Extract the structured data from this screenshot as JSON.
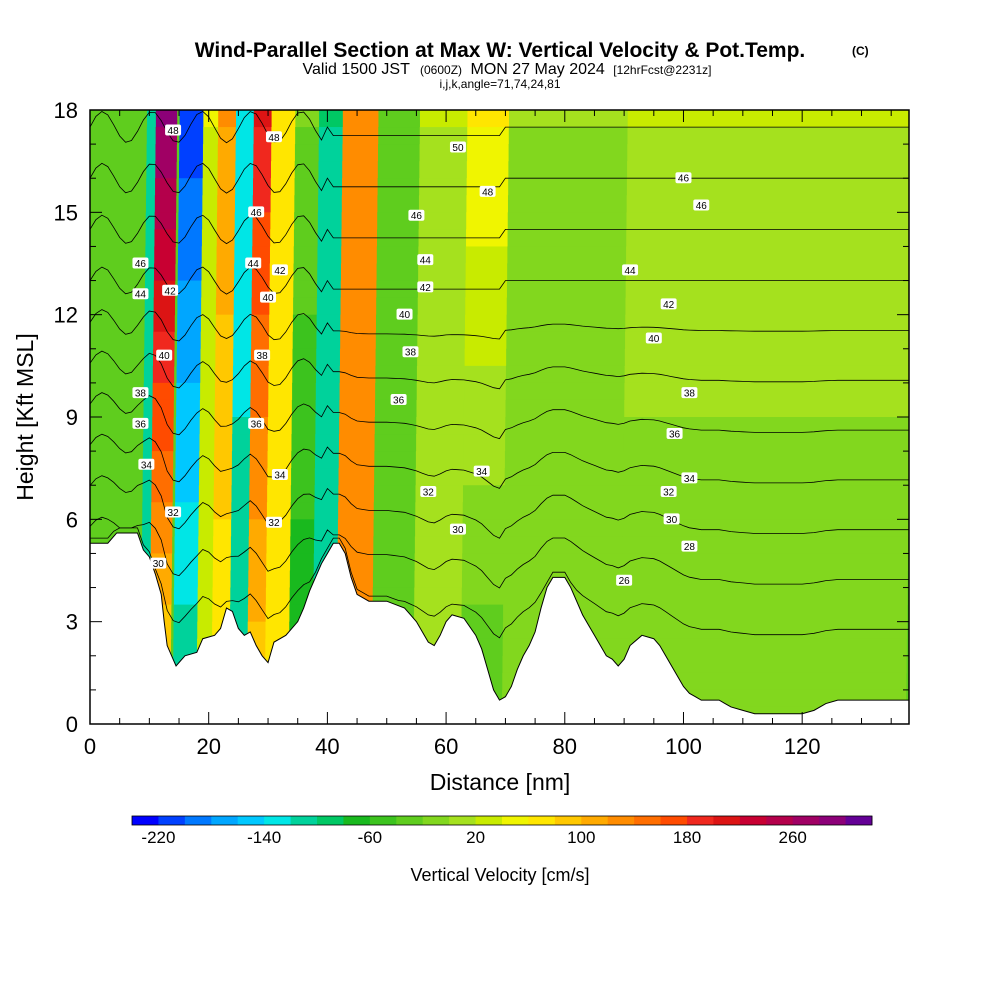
{
  "title": {
    "main": "Wind-Parallel Section at Max W: Vertical Velocity & Pot.Temp.",
    "copyright": "(C)",
    "valid_prefix": "Valid 1500 JST",
    "valid_utc": "(0600Z)",
    "valid_date": "MON 27 May 2024",
    "forecast": "[12hrFcst@2231z]",
    "ijk": "i,j,k,angle=71,74,24,81"
  },
  "chart_data": {
    "type": "heatmap",
    "xlabel": "Distance [nm]",
    "ylabel": "Height [Kft MSL]",
    "xlim": [
      0,
      138
    ],
    "ylim": [
      0,
      18
    ],
    "x_ticks": [
      "0",
      "20",
      "40",
      "60",
      "80",
      "100",
      "120"
    ],
    "y_ticks": [
      "0",
      "3",
      "6",
      "9",
      "12",
      "15",
      "18"
    ],
    "terrain_profile": [
      [
        0,
        5.3
      ],
      [
        3,
        5.3
      ],
      [
        4.5,
        5.6
      ],
      [
        8,
        5.6
      ],
      [
        9,
        5.1
      ],
      [
        10,
        4.9
      ],
      [
        11,
        4.4
      ],
      [
        12,
        3.8
      ],
      [
        12.5,
        3.0
      ],
      [
        13,
        2.3
      ],
      [
        14,
        1.9
      ],
      [
        14.5,
        1.7
      ],
      [
        16,
        2.0
      ],
      [
        18,
        2.1
      ],
      [
        19,
        2.5
      ],
      [
        21,
        2.6
      ],
      [
        22,
        2.8
      ],
      [
        23,
        3.4
      ],
      [
        24,
        3.3
      ],
      [
        25,
        2.8
      ],
      [
        26,
        2.6
      ],
      [
        27,
        2.7
      ],
      [
        28,
        2.3
      ],
      [
        29,
        2.0
      ],
      [
        30,
        1.8
      ],
      [
        31,
        2.4
      ],
      [
        33,
        2.6
      ],
      [
        35,
        3.0
      ],
      [
        36,
        3.4
      ],
      [
        37,
        3.9
      ],
      [
        38,
        4.3
      ],
      [
        39,
        4.7
      ],
      [
        40,
        5.0
      ],
      [
        41,
        5.3
      ],
      [
        42,
        5.3
      ],
      [
        43,
        5.0
      ],
      [
        44,
        4.3
      ],
      [
        45,
        3.8
      ],
      [
        47,
        3.6
      ],
      [
        50,
        3.6
      ],
      [
        53,
        3.4
      ],
      [
        54,
        3.2
      ],
      [
        55,
        3.0
      ],
      [
        56,
        2.7
      ],
      [
        57,
        2.4
      ],
      [
        58,
        2.3
      ],
      [
        59,
        2.6
      ],
      [
        60,
        3.0
      ],
      [
        61,
        3.2
      ],
      [
        63,
        3.1
      ],
      [
        65,
        2.6
      ],
      [
        66,
        2.2
      ],
      [
        67,
        1.6
      ],
      [
        68,
        1.0
      ],
      [
        69,
        0.7
      ],
      [
        70,
        0.8
      ],
      [
        71,
        1.1
      ],
      [
        72,
        1.6
      ],
      [
        73,
        2.0
      ],
      [
        74,
        2.3
      ],
      [
        75,
        2.7
      ],
      [
        76,
        3.4
      ],
      [
        77,
        4.0
      ],
      [
        78,
        4.3
      ],
      [
        80,
        4.3
      ],
      [
        81,
        4.0
      ],
      [
        82,
        3.6
      ],
      [
        83,
        3.2
      ],
      [
        84,
        2.9
      ],
      [
        85,
        2.6
      ],
      [
        86,
        2.3
      ],
      [
        87,
        2.0
      ],
      [
        88,
        1.9
      ],
      [
        89,
        1.7
      ],
      [
        90,
        1.9
      ],
      [
        91,
        2.3
      ],
      [
        93,
        2.6
      ],
      [
        95,
        2.5
      ],
      [
        96,
        2.3
      ],
      [
        97,
        2.0
      ],
      [
        98,
        1.7
      ],
      [
        99,
        1.4
      ],
      [
        100,
        1.1
      ],
      [
        101,
        0.9
      ],
      [
        102,
        0.8
      ],
      [
        103,
        0.7
      ],
      [
        106,
        0.7
      ],
      [
        107,
        0.6
      ],
      [
        108,
        0.5
      ],
      [
        110,
        0.4
      ],
      [
        112,
        0.3
      ],
      [
        115,
        0.3
      ],
      [
        118,
        0.3
      ],
      [
        120,
        0.3
      ],
      [
        122,
        0.4
      ],
      [
        124,
        0.6
      ],
      [
        126,
        0.7
      ],
      [
        129,
        0.7
      ],
      [
        132,
        0.7
      ],
      [
        134,
        0.7
      ],
      [
        136,
        0.7
      ],
      [
        138,
        0.7
      ]
    ],
    "vertical_velocity_bands": [
      {
        "x0": 9,
        "x1": 13,
        "vtop": 0,
        "vbot": 0,
        "v": -120
      },
      {
        "x0": 10.5,
        "x1": 14,
        "vtop": 280,
        "vbot": 60,
        "v": 0
      },
      {
        "x0": 14.5,
        "x1": 18.5,
        "vtop": -210,
        "vbot": -100,
        "v": 0
      },
      {
        "x0": 18.5,
        "x1": 21,
        "vtop": 40,
        "vbot": 30,
        "v": 0
      },
      {
        "x0": 21,
        "x1": 24,
        "vtop": 120,
        "vbot": 60,
        "v": 0
      },
      {
        "x0": 24,
        "x1": 27,
        "vtop": -140,
        "vbot": -100,
        "v": 0
      },
      {
        "x0": 27,
        "x1": 30,
        "vtop": 200,
        "vbot": 80,
        "v": 0
      },
      {
        "x0": 30,
        "x1": 34,
        "vtop": 60,
        "vbot": 60,
        "v": 0
      },
      {
        "x0": 34,
        "x1": 38,
        "vtop": -20,
        "vbot": -80,
        "v": 0
      },
      {
        "x0": 38,
        "x1": 42,
        "vtop": -100,
        "vbot": -120,
        "v": 0
      },
      {
        "x0": 42,
        "x1": 48,
        "vtop": 120,
        "vbot": 140,
        "v": 0
      },
      {
        "x0": 48,
        "x1": 55,
        "vtop": -40,
        "vbot": -20,
        "v": 0
      },
      {
        "x0": 55,
        "x1": 63,
        "vtop": 20,
        "vbot": 0,
        "v": 0
      },
      {
        "x0": 63,
        "x1": 70,
        "vtop": 60,
        "vbot": -40,
        "v": 0
      },
      {
        "x0": 70,
        "x1": 90,
        "vtop": 0,
        "vbot": -20,
        "v": 0
      },
      {
        "x0": 90,
        "x1": 138,
        "vtop": 20,
        "vbot": -20,
        "v": 0
      }
    ],
    "theta_contours": [
      {
        "label": "26",
        "level": 26
      },
      {
        "label": "28",
        "level": 28
      },
      {
        "label": "30",
        "level": 30
      },
      {
        "label": "32",
        "level": 32
      },
      {
        "label": "34",
        "level": 34
      },
      {
        "label": "36",
        "level": 36
      },
      {
        "label": "38",
        "level": 38
      },
      {
        "label": "40",
        "level": 40
      },
      {
        "label": "42",
        "level": 42
      },
      {
        "label": "44",
        "level": 44
      },
      {
        "label": "46",
        "level": 46
      },
      {
        "label": "48",
        "level": 48
      },
      {
        "label": "50",
        "level": 50
      }
    ],
    "contour_labels": [
      {
        "text": "48",
        "x": 14,
        "y": 17.4
      },
      {
        "text": "48",
        "x": 31,
        "y": 17.2
      },
      {
        "text": "50",
        "x": 62,
        "y": 16.9
      },
      {
        "text": "46",
        "x": 100,
        "y": 16.0
      },
      {
        "text": "48",
        "x": 67,
        "y": 15.6
      },
      {
        "text": "46",
        "x": 103,
        "y": 15.2
      },
      {
        "text": "46",
        "x": 28,
        "y": 15.0
      },
      {
        "text": "46",
        "x": 55,
        "y": 14.9
      },
      {
        "text": "46",
        "x": 8.5,
        "y": 13.5
      },
      {
        "text": "44",
        "x": 27.5,
        "y": 13.5
      },
      {
        "text": "44",
        "x": 56.5,
        "y": 13.6
      },
      {
        "text": "42",
        "x": 32,
        "y": 13.3
      },
      {
        "text": "44",
        "x": 91,
        "y": 13.3
      },
      {
        "text": "44",
        "x": 8.5,
        "y": 12.6
      },
      {
        "text": "42",
        "x": 13.5,
        "y": 12.7
      },
      {
        "text": "42",
        "x": 56.5,
        "y": 12.8
      },
      {
        "text": "40",
        "x": 30,
        "y": 12.5
      },
      {
        "text": "42",
        "x": 97.5,
        "y": 12.3
      },
      {
        "text": "40",
        "x": 53,
        "y": 12.0
      },
      {
        "text": "40",
        "x": 95,
        "y": 11.3
      },
      {
        "text": "40",
        "x": 12.5,
        "y": 10.8
      },
      {
        "text": "38",
        "x": 29,
        "y": 10.8
      },
      {
        "text": "38",
        "x": 54,
        "y": 10.9
      },
      {
        "text": "38",
        "x": 8.5,
        "y": 9.7
      },
      {
        "text": "36",
        "x": 52,
        "y": 9.5
      },
      {
        "text": "38",
        "x": 101,
        "y": 9.7
      },
      {
        "text": "36",
        "x": 8.5,
        "y": 8.8
      },
      {
        "text": "36",
        "x": 28,
        "y": 8.8
      },
      {
        "text": "36",
        "x": 98.5,
        "y": 8.5
      },
      {
        "text": "34",
        "x": 66,
        "y": 7.4
      },
      {
        "text": "34",
        "x": 9.5,
        "y": 7.6
      },
      {
        "text": "34",
        "x": 32,
        "y": 7.3
      },
      {
        "text": "34",
        "x": 101,
        "y": 7.2
      },
      {
        "text": "32",
        "x": 57,
        "y": 6.8
      },
      {
        "text": "32",
        "x": 97.5,
        "y": 6.8
      },
      {
        "text": "32",
        "x": 14,
        "y": 6.2
      },
      {
        "text": "32",
        "x": 31,
        "y": 5.9
      },
      {
        "text": "30",
        "x": 98,
        "y": 6.0
      },
      {
        "text": "30",
        "x": 62,
        "y": 5.7
      },
      {
        "text": "28",
        "x": 101,
        "y": 5.2
      },
      {
        "text": "30",
        "x": 11.5,
        "y": 4.7
      },
      {
        "text": "26",
        "x": 90,
        "y": 4.2
      }
    ]
  },
  "colorbar": {
    "title": "Vertical Velocity [cm/s]",
    "labels": [
      "-220",
      "-140",
      "-60",
      "20",
      "100",
      "180",
      "260"
    ],
    "colors": [
      "#0000ff",
      "#0040ff",
      "#0078ff",
      "#00a6ff",
      "#00c8ff",
      "#00e6e6",
      "#00d29b",
      "#00c864",
      "#19b91e",
      "#3cc31e",
      "#5fcd1e",
      "#82d71e",
      "#a5e11e",
      "#c8eb00",
      "#f0f500",
      "#ffe600",
      "#ffc800",
      "#ffaa00",
      "#ff8c00",
      "#ff6e00",
      "#ff4b00",
      "#f0281e",
      "#dc1414",
      "#c80032",
      "#b4004b",
      "#a00064",
      "#8c0078",
      "#640096"
    ]
  }
}
